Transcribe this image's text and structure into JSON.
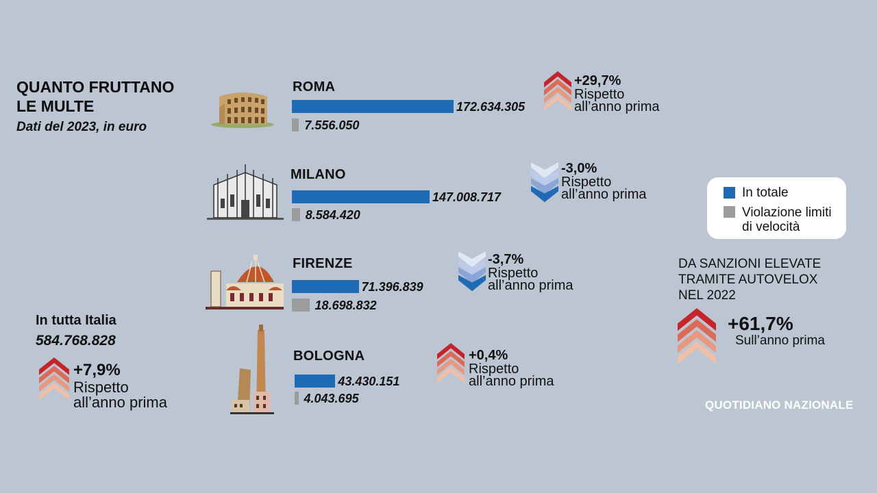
{
  "title": "QUANTO FRUTTANO\nLE MULTE",
  "subtitle": "Dati del 2023, in euro",
  "legend": {
    "total_label": "In totale",
    "speed_label": "Violazione limiti\ndi velocità",
    "colors": {
      "total": "#1f6ab5",
      "speed": "#9c9c9c"
    }
  },
  "italy": {
    "label": "In tutta Italia",
    "value": "584.768.828",
    "change": "+7,9%",
    "change_text": "Rispetto\nall’anno prima"
  },
  "autovelox": {
    "text": "DA SANZIONI ELEVATE\nTRAMITE AUTOVELOX\nNEL 2022",
    "change": "+61,7%",
    "change_text": "Sull’anno prima"
  },
  "brand": "QUOTIDIANO NAZIONALE",
  "chart_data": {
    "type": "bar",
    "categories": [
      "ROMA",
      "MILANO",
      "FIRENZE",
      "BOLOGNA"
    ],
    "series": [
      {
        "name": "In totale",
        "values": [
          172634305,
          147008717,
          71396839,
          43430151
        ],
        "labels": [
          "172.634.305",
          "147.008.717",
          "71.396.839",
          "43.430.151"
        ]
      },
      {
        "name": "Violazione limiti di velocità",
        "values": [
          7556050,
          8584420,
          18698832,
          4043695
        ],
        "labels": [
          "7.556.050",
          "8.584.420",
          "18.698.832",
          "4.043.695"
        ]
      }
    ],
    "changes": [
      {
        "city": "ROMA",
        "value": "+29,7%",
        "direction": "up",
        "text": "Rispetto\nall’anno prima"
      },
      {
        "city": "MILANO",
        "value": "-3,0%",
        "direction": "down",
        "text": "Rispetto\nall’anno prima"
      },
      {
        "city": "FIRENZE",
        "value": "-3,7%",
        "direction": "down",
        "text": "Rispetto\nall’anno prima"
      },
      {
        "city": "BOLOGNA",
        "value": "+0,4%",
        "direction": "up",
        "text": "Rispetto\nall’anno prima"
      }
    ]
  }
}
